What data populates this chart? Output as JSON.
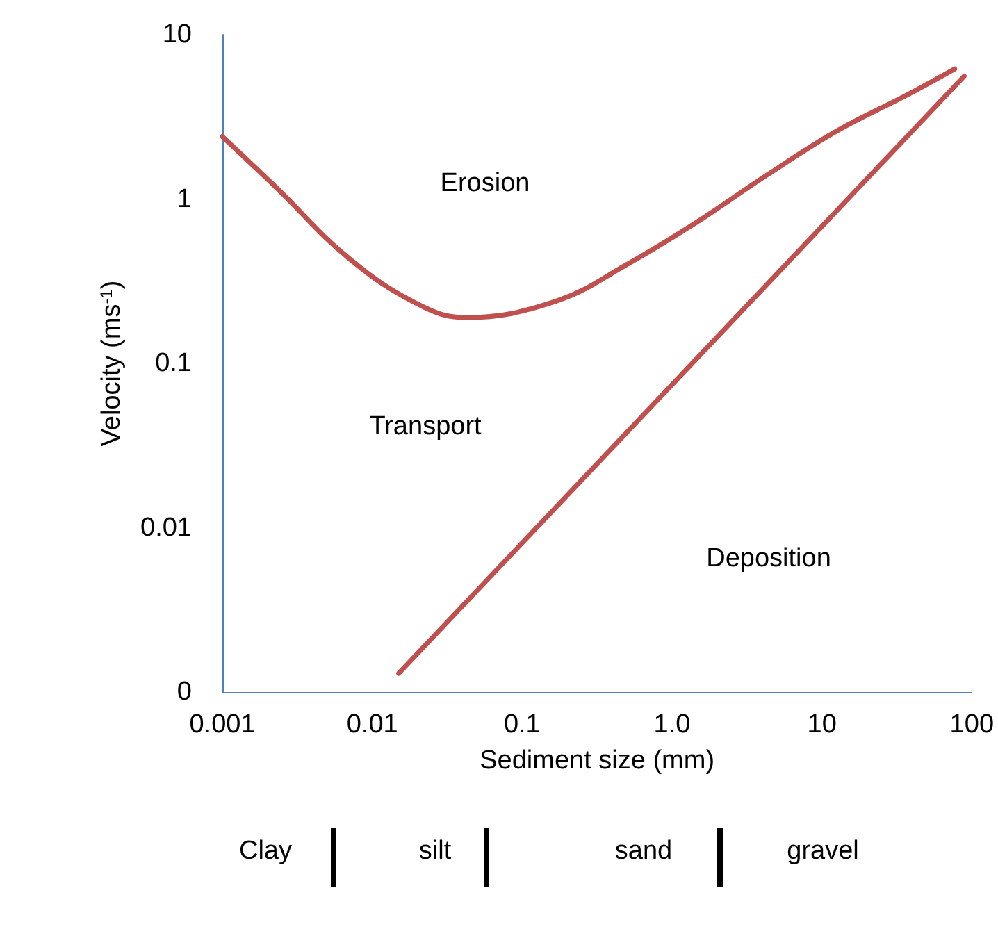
{
  "chart_data": {
    "type": "line",
    "xlabel": "Sediment size (mm)",
    "ylabel": "Velocity (ms$^{-1}$)",
    "log": "xy",
    "xlim": [
      0.001,
      100
    ],
    "ylim": [
      0.001,
      10
    ],
    "xticks": [
      0.001,
      0.01,
      0.1,
      {
        "value": 1,
        "label": "1.0"
      },
      10,
      100
    ],
    "yticks": [
      {
        "value": 0.001,
        "label": "0"
      },
      0.01,
      0.1,
      1,
      10
    ],
    "grid": false,
    "marker": "none",
    "line_style": "solid",
    "series": [
      {
        "color": "#c0504d",
        "x": [
          0.001,
          0.0023,
          0.0069,
          0.02,
          0.042,
          0.17,
          0.5,
          1.45,
          4.3,
          12.6,
          37,
          77
        ],
        "values": [
          2.4,
          1.17,
          0.44,
          0.23,
          0.19,
          0.24,
          0.4,
          0.72,
          1.4,
          2.6,
          4.3,
          6.2
        ]
      },
      {
        "color": "#c0504d",
        "x": [
          0.015,
          89
        ],
        "values": [
          0.0013,
          5.6
        ]
      }
    ],
    "annotations": [
      "Erosion",
      "Transport",
      "Deposition",
      "Clay",
      "silt",
      "sand",
      "gravel"
    ]
  }
}
